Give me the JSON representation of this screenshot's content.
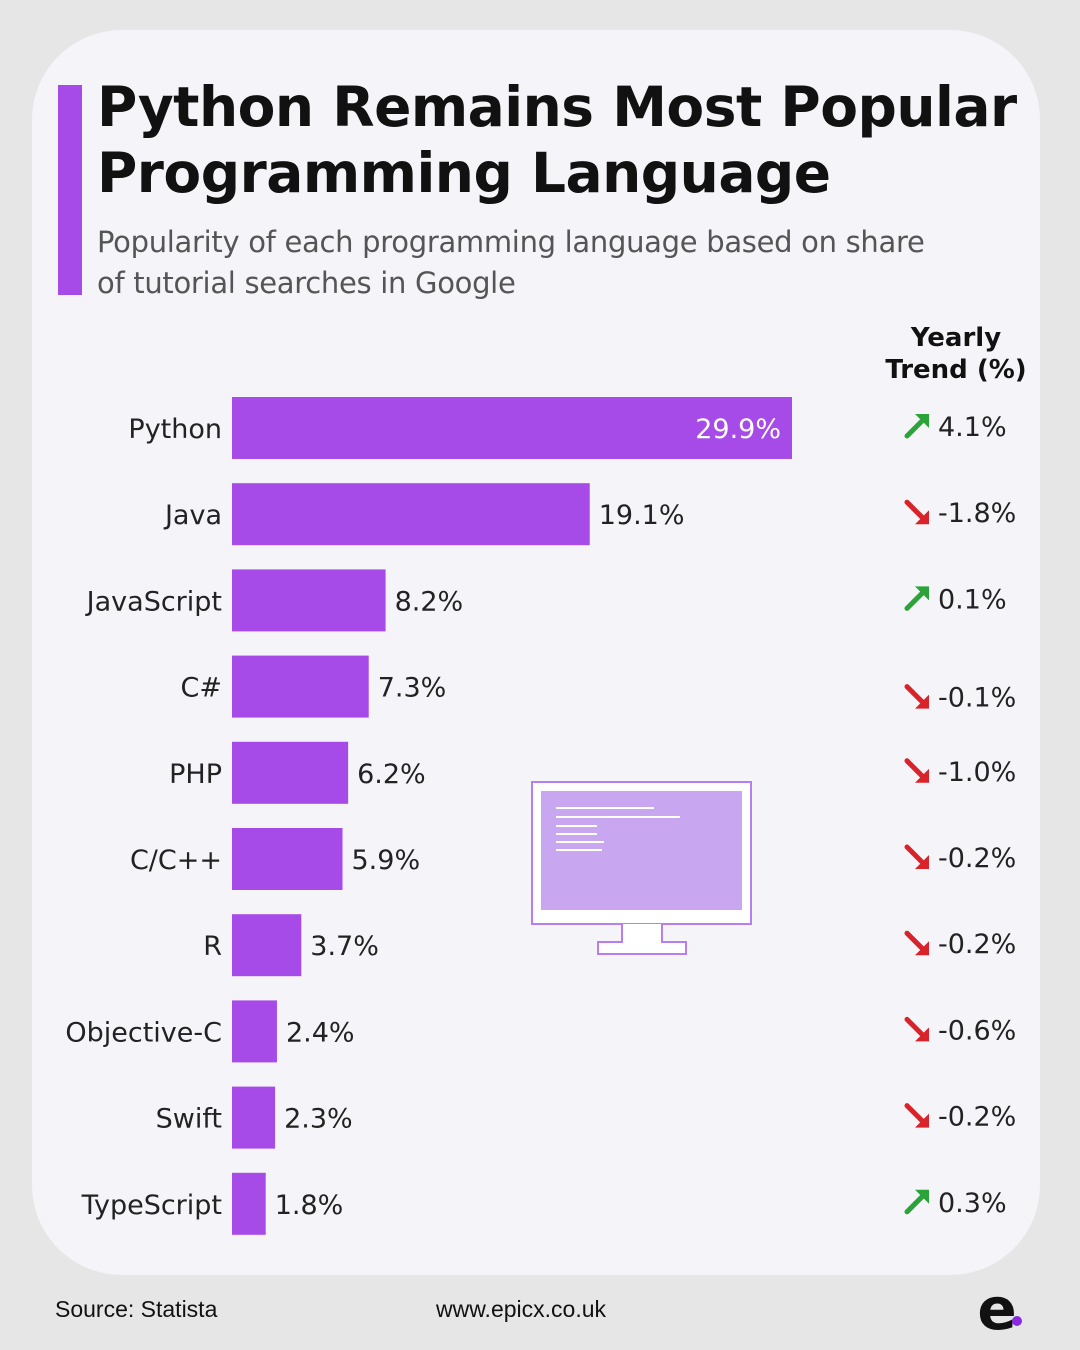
{
  "title_lines": [
    "Python Remains Most Popular",
    "Programming Language"
  ],
  "subtitle_lines": [
    "Popularity of each programming language based on share",
    "of tutorial searches in Google"
  ],
  "trend_header_lines": [
    "Yearly",
    "Trend (%)"
  ],
  "colors": {
    "bar": "#a64be8",
    "accent": "#a64be8",
    "trend_up": "#2aa339",
    "trend_down": "#d9232b",
    "monitor_screen": "#c9a6f0",
    "monitor_outline": "#b77ef0"
  },
  "illustration": "monitor-icon",
  "chart_data": {
    "type": "bar",
    "orientation": "horizontal",
    "categories": [
      "Python",
      "Java",
      "JavaScript",
      "C#",
      "PHP",
      "C/C++",
      "R",
      "Objective-C",
      "Swift",
      "TypeScript"
    ],
    "values": [
      29.9,
      19.1,
      8.2,
      7.3,
      6.2,
      5.9,
      3.7,
      2.4,
      2.3,
      1.8
    ],
    "value_labels": [
      "29.9%",
      "19.1%",
      "8.2%",
      "7.3%",
      "6.2%",
      "5.9%",
      "3.7%",
      "2.4%",
      "2.3%",
      "1.8%"
    ],
    "unit": "%",
    "xlim": [
      0,
      29.9
    ],
    "grid": false,
    "trend": {
      "values": [
        4.1,
        -1.8,
        0.1,
        -0.1,
        -1.0,
        -0.2,
        -0.2,
        -0.6,
        -0.2,
        0.3
      ],
      "labels": [
        "4.1%",
        "-1.8%",
        "0.1%",
        "-0.1%",
        "-1.0%",
        "-0.2%",
        "-0.2%",
        "-0.6%",
        "-0.2%",
        "0.3%"
      ],
      "directions": [
        "up",
        "down",
        "up",
        "down",
        "down",
        "down",
        "down",
        "down",
        "down",
        "up"
      ]
    }
  },
  "footer": {
    "source": "Source: Statista",
    "url": "www.epicx.co.uk"
  },
  "logo": {
    "letter": "e",
    "name": "epicx-logo"
  }
}
